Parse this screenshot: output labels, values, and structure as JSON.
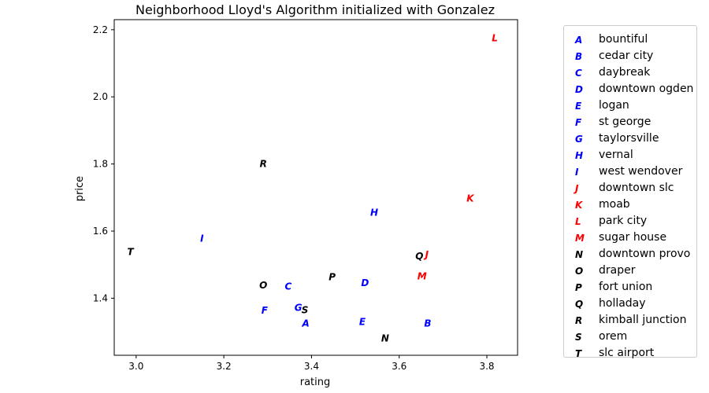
{
  "chart_data": {
    "type": "scatter",
    "title": "Neighborhood Lloyd's Algorithm initialized with Gonzalez",
    "xlabel": "rating",
    "ylabel": "price",
    "xlim": [
      2.95,
      3.87
    ],
    "ylim": [
      1.23,
      2.23
    ],
    "xticks": [
      "3.0",
      "3.2",
      "3.4",
      "3.6",
      "3.8"
    ],
    "xtick_values": [
      3.0,
      3.2,
      3.4,
      3.6,
      3.8
    ],
    "yticks": [
      "1.4",
      "1.6",
      "1.8",
      "2.0",
      "2.2"
    ],
    "ytick_values": [
      1.4,
      1.6,
      1.8,
      2.0,
      2.2
    ],
    "grid": false,
    "legend_position": "outside-right",
    "points": [
      {
        "marker": "A",
        "name": "bountiful",
        "x": 3.387,
        "y": 1.325,
        "color": "#0000ff"
      },
      {
        "marker": "B",
        "name": "cedar city",
        "x": 3.665,
        "y": 1.325,
        "color": "#0000ff"
      },
      {
        "marker": "C",
        "name": "daybreak",
        "x": 3.347,
        "y": 1.435,
        "color": "#0000ff"
      },
      {
        "marker": "D",
        "name": "downtown ogden",
        "x": 3.522,
        "y": 1.445,
        "color": "#0000ff"
      },
      {
        "marker": "E",
        "name": "logan",
        "x": 3.516,
        "y": 1.33,
        "color": "#0000ff"
      },
      {
        "marker": "F",
        "name": "st george",
        "x": 3.293,
        "y": 1.363,
        "color": "#0000ff"
      },
      {
        "marker": "G",
        "name": "taylorsville",
        "x": 3.37,
        "y": 1.372,
        "color": "#0000ff"
      },
      {
        "marker": "H",
        "name": "vernal",
        "x": 3.543,
        "y": 1.655,
        "color": "#0000ff"
      },
      {
        "marker": "I",
        "name": "west wendover",
        "x": 3.15,
        "y": 1.578,
        "color": "#0000ff"
      },
      {
        "marker": "J",
        "name": "downtown slc",
        "x": 3.663,
        "y": 1.53,
        "color": "#ff0000"
      },
      {
        "marker": "K",
        "name": "moab",
        "x": 3.762,
        "y": 1.697,
        "color": "#ff0000"
      },
      {
        "marker": "L",
        "name": "park city",
        "x": 3.818,
        "y": 2.175,
        "color": "#ff0000"
      },
      {
        "marker": "M",
        "name": "sugar house",
        "x": 3.652,
        "y": 1.465,
        "color": "#ff0000"
      },
      {
        "marker": "N",
        "name": "downtown provo",
        "x": 3.568,
        "y": 1.28,
        "color": "#000000"
      },
      {
        "marker": "O",
        "name": "draper",
        "x": 3.29,
        "y": 1.438,
        "color": "#000000"
      },
      {
        "marker": "P",
        "name": "fort union",
        "x": 3.447,
        "y": 1.463,
        "color": "#000000"
      },
      {
        "marker": "Q",
        "name": "holladay",
        "x": 3.646,
        "y": 1.525,
        "color": "#000000"
      },
      {
        "marker": "R",
        "name": "kimball junction",
        "x": 3.29,
        "y": 1.8,
        "color": "#000000"
      },
      {
        "marker": "S",
        "name": "orem",
        "x": 3.385,
        "y": 1.365,
        "color": "#000000"
      },
      {
        "marker": "T",
        "name": "slc airport",
        "x": 2.987,
        "y": 1.538,
        "color": "#000000"
      }
    ]
  }
}
